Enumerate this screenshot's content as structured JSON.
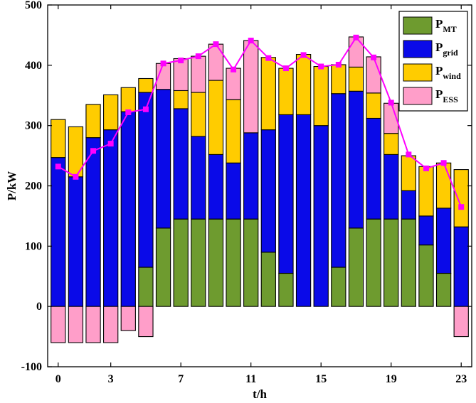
{
  "chart_data": {
    "type": "bar",
    "stacked": true,
    "xlabel": "t/h",
    "ylabel": "P/kW",
    "ylim": [
      -100,
      500
    ],
    "xlim": [
      -0.6,
      23.6
    ],
    "yticks": [
      -100,
      0,
      100,
      200,
      300,
      400,
      500
    ],
    "xticks": [
      0,
      3,
      7,
      11,
      15,
      19,
      23
    ],
    "x": [
      0,
      1,
      2,
      3,
      4,
      5,
      6,
      7,
      8,
      9,
      10,
      11,
      12,
      13,
      14,
      15,
      16,
      17,
      18,
      19,
      20,
      21,
      22,
      23
    ],
    "grid": false,
    "legend_position": "top-right",
    "series": [
      {
        "name": "P",
        "sub": "MT",
        "color": "#6e9b2f",
        "values": [
          0,
          0,
          0,
          0,
          0,
          65,
          130,
          145,
          145,
          145,
          145,
          145,
          90,
          55,
          0,
          0,
          65,
          130,
          145,
          145,
          145,
          102,
          55,
          0
        ]
      },
      {
        "name": "P",
        "sub": "grid",
        "color": "#0a0ae8",
        "values": [
          247,
          215,
          280,
          293,
          323,
          290,
          230,
          183,
          137,
          107,
          93,
          143,
          203,
          263,
          318,
          300,
          288,
          227,
          167,
          107,
          47,
          48,
          108,
          132
        ]
      },
      {
        "name": "P",
        "sub": "wind",
        "color": "#ffcc00",
        "values": [
          63,
          83,
          55,
          58,
          40,
          23,
          0,
          30,
          73,
          123,
          105,
          0,
          120,
          77,
          100,
          98,
          48,
          40,
          42,
          35,
          58,
          82,
          75,
          95
        ]
      },
      {
        "name": "P",
        "sub": "ESS",
        "color": "#ff9ec9",
        "values": [
          -60,
          -60,
          -60,
          -60,
          -40,
          -50,
          43,
          53,
          60,
          60,
          52,
          153,
          0,
          0,
          0,
          0,
          0,
          50,
          60,
          50,
          0,
          0,
          0,
          -50
        ]
      }
    ],
    "load_line": {
      "color": "#ff00ff",
      "values": [
        232,
        215,
        258,
        270,
        322,
        327,
        403,
        408,
        415,
        435,
        393,
        441,
        412,
        395,
        417,
        398,
        401,
        446,
        413,
        338,
        252,
        229,
        238,
        165
      ]
    }
  }
}
